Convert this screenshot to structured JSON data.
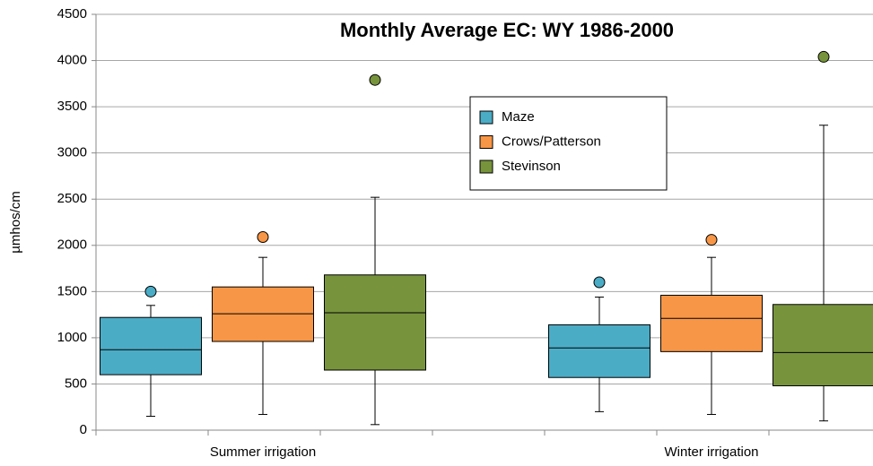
{
  "chart_data": {
    "type": "box",
    "title": "Monthly Average EC: WY 1986-2000",
    "y_label": "µmhos/cm",
    "categories": [
      "Summer irrigation",
      "Winter irrigation"
    ],
    "ylim": [
      0,
      4500
    ],
    "yticks": [
      0,
      500,
      1000,
      1500,
      2000,
      2500,
      3000,
      3500,
      4000,
      4500
    ],
    "grid": true,
    "legend": "upper center",
    "series": [
      {
        "name": "Maze",
        "color": "#4bacc6",
        "min": [
          150,
          200
        ],
        "q1": [
          600,
          570
        ],
        "median": [
          870,
          890
        ],
        "q3": [
          1220,
          1140
        ],
        "max": [
          1350,
          1440
        ],
        "outliers": [
          1500,
          1600
        ]
      },
      {
        "name": "Crows/Patterson",
        "color": "#f79646",
        "min": [
          170,
          170
        ],
        "q1": [
          960,
          850
        ],
        "median": [
          1260,
          1210
        ],
        "q3": [
          1550,
          1460
        ],
        "max": [
          1870,
          1870
        ],
        "outliers": [
          2090,
          2060
        ]
      },
      {
        "name": "Stevinson",
        "color": "#77933c",
        "min": [
          60,
          100
        ],
        "q1": [
          650,
          480
        ],
        "median": [
          1270,
          840
        ],
        "q3": [
          1680,
          1360
        ],
        "max": [
          2520,
          3300
        ],
        "outliers": [
          3790,
          4040
        ]
      }
    ]
  }
}
